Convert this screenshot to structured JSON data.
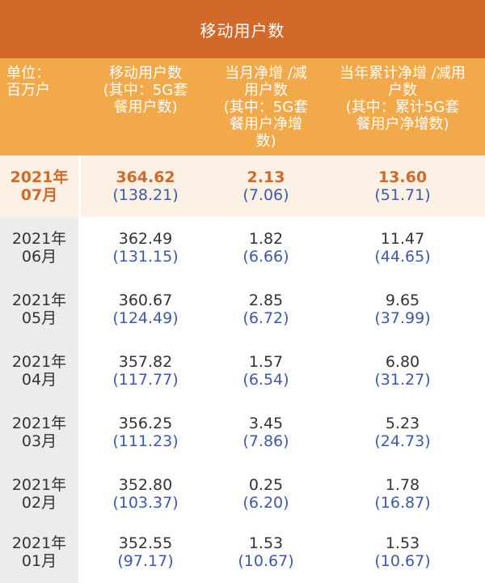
{
  "title": "移动用户数",
  "headers": [
    "单位：\n百万户",
    "移动用户数\n(其中：5G套\n餐用户数)",
    "当月净增 /减\n用户数\n(其中：5G套\n餐用户净增\n数)",
    "当年累计净增 /减用\n户数\n(其中：累计5G套\n餐用户净增数)"
  ],
  "rows": [
    {
      "year": "2021年",
      "month": "07月",
      "users": "364.62",
      "users_5g": "(138.21)",
      "monthly": "2.13",
      "monthly_5g": "(7.06)",
      "ytd": "13.60",
      "ytd_5g": "(51.71)"
    },
    {
      "year": "2021年",
      "month": "06月",
      "users": "362.49",
      "users_5g": "(131.15)",
      "monthly": "1.82",
      "monthly_5g": "(6.66)",
      "ytd": "11.47",
      "ytd_5g": "(44.65)"
    },
    {
      "year": "2021年",
      "month": "05月",
      "users": "360.67",
      "users_5g": "(124.49)",
      "monthly": "2.85",
      "monthly_5g": "(6.72)",
      "ytd": "9.65",
      "ytd_5g": "(37.99)"
    },
    {
      "year": "2021年",
      "month": "04月",
      "users": "357.82",
      "users_5g": "(117.77)",
      "monthly": "1.57",
      "monthly_5g": "(6.54)",
      "ytd": "6.80",
      "ytd_5g": "(31.27)"
    },
    {
      "year": "2021年",
      "month": "03月",
      "users": "356.25",
      "users_5g": "(111.23)",
      "monthly": "3.45",
      "monthly_5g": "(7.86)",
      "ytd": "5.23",
      "ytd_5g": "(24.73)"
    },
    {
      "year": "2021年",
      "month": "02月",
      "users": "352.80",
      "users_5g": "(103.37)",
      "monthly": "0.25",
      "monthly_5g": "(6.20)",
      "ytd": "1.78",
      "ytd_5g": "(16.87)"
    },
    {
      "year": "2021年",
      "month": "01月",
      "users": "352.55",
      "users_5g": "(97.17)",
      "monthly": "1.53",
      "monthly_5g": "(10.67)",
      "ytd": "1.53",
      "ytd_5g": "(10.67)"
    }
  ],
  "colors": {
    "title_bg": "#d2692a",
    "header_bg": "#f2a94a",
    "highlight_bg": "#fdf1e6",
    "highlight_text": "#d2692a",
    "sub_value_text": "#3d5aa8",
    "label_col_bg": "#ececec"
  }
}
